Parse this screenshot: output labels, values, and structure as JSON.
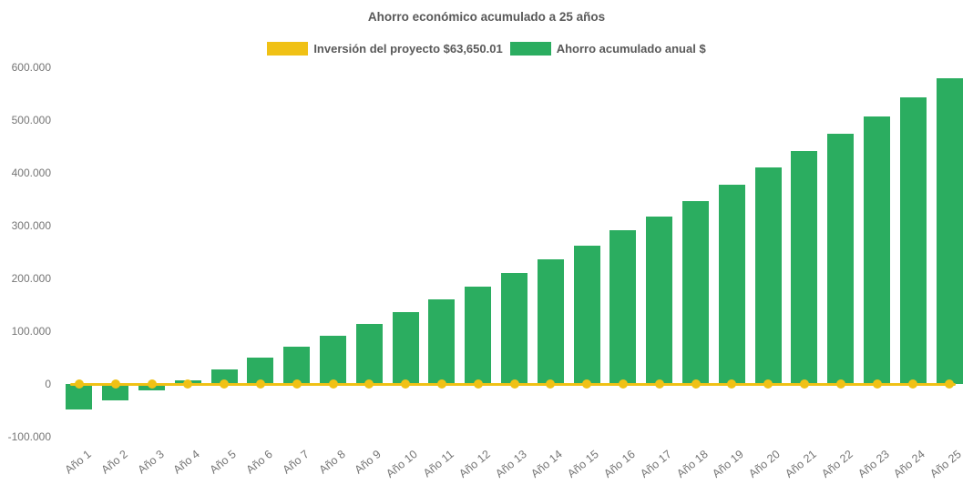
{
  "title": "Ahorro económico acumulado a 25 años",
  "colors": {
    "background": "#ffffff",
    "investment_yellow": "#F0C115",
    "savings_green": "#2BAD60",
    "title_text": "#595959",
    "axis_text": "#757575"
  },
  "chart_data": {
    "type": "bar",
    "title": "Ahorro económico acumulado a 25 años",
    "xlabel": "",
    "ylabel": "",
    "grid": false,
    "legend_position": "top",
    "ylim": [
      -100000,
      600000
    ],
    "yticks": [
      {
        "value": 600000,
        "label": "600.000"
      },
      {
        "value": 500000,
        "label": "500.000"
      },
      {
        "value": 400000,
        "label": "400.000"
      },
      {
        "value": 300000,
        "label": "300.000"
      },
      {
        "value": 200000,
        "label": "200.000"
      },
      {
        "value": 100000,
        "label": "100.000"
      },
      {
        "value": 0,
        "label": "0"
      },
      {
        "value": -100000,
        "label": "-100.000"
      }
    ],
    "categories": [
      "Año 1",
      "Año 2",
      "Año 3",
      "Año 4",
      "Año 5",
      "Año 6",
      "Año 7",
      "Año 8",
      "Año 9",
      "Año 10",
      "Año 11",
      "Año 12",
      "Año 13",
      "Año 14",
      "Año 15",
      "Año 16",
      "Año 17",
      "Año 18",
      "Año 19",
      "Año 20",
      "Año 21",
      "Año 22",
      "Año 23",
      "Año 24",
      "Año 25"
    ],
    "series": [
      {
        "name": "Inversión del proyecto $63,650.01",
        "type": "line",
        "color": "#F0C115",
        "marker": "circle",
        "y_constant": 0
      },
      {
        "name": "Ahorro acumulado anual $",
        "type": "bar",
        "color": "#2BAD60",
        "values": [
          -48000,
          -30300,
          -12600,
          7600,
          27600,
          50000,
          70700,
          92000,
          113000,
          137000,
          161000,
          185200,
          209800,
          235700,
          262700,
          291400,
          318000,
          346500,
          378300,
          409800,
          440800,
          473600,
          507500,
          543100,
          578700
        ]
      }
    ]
  }
}
